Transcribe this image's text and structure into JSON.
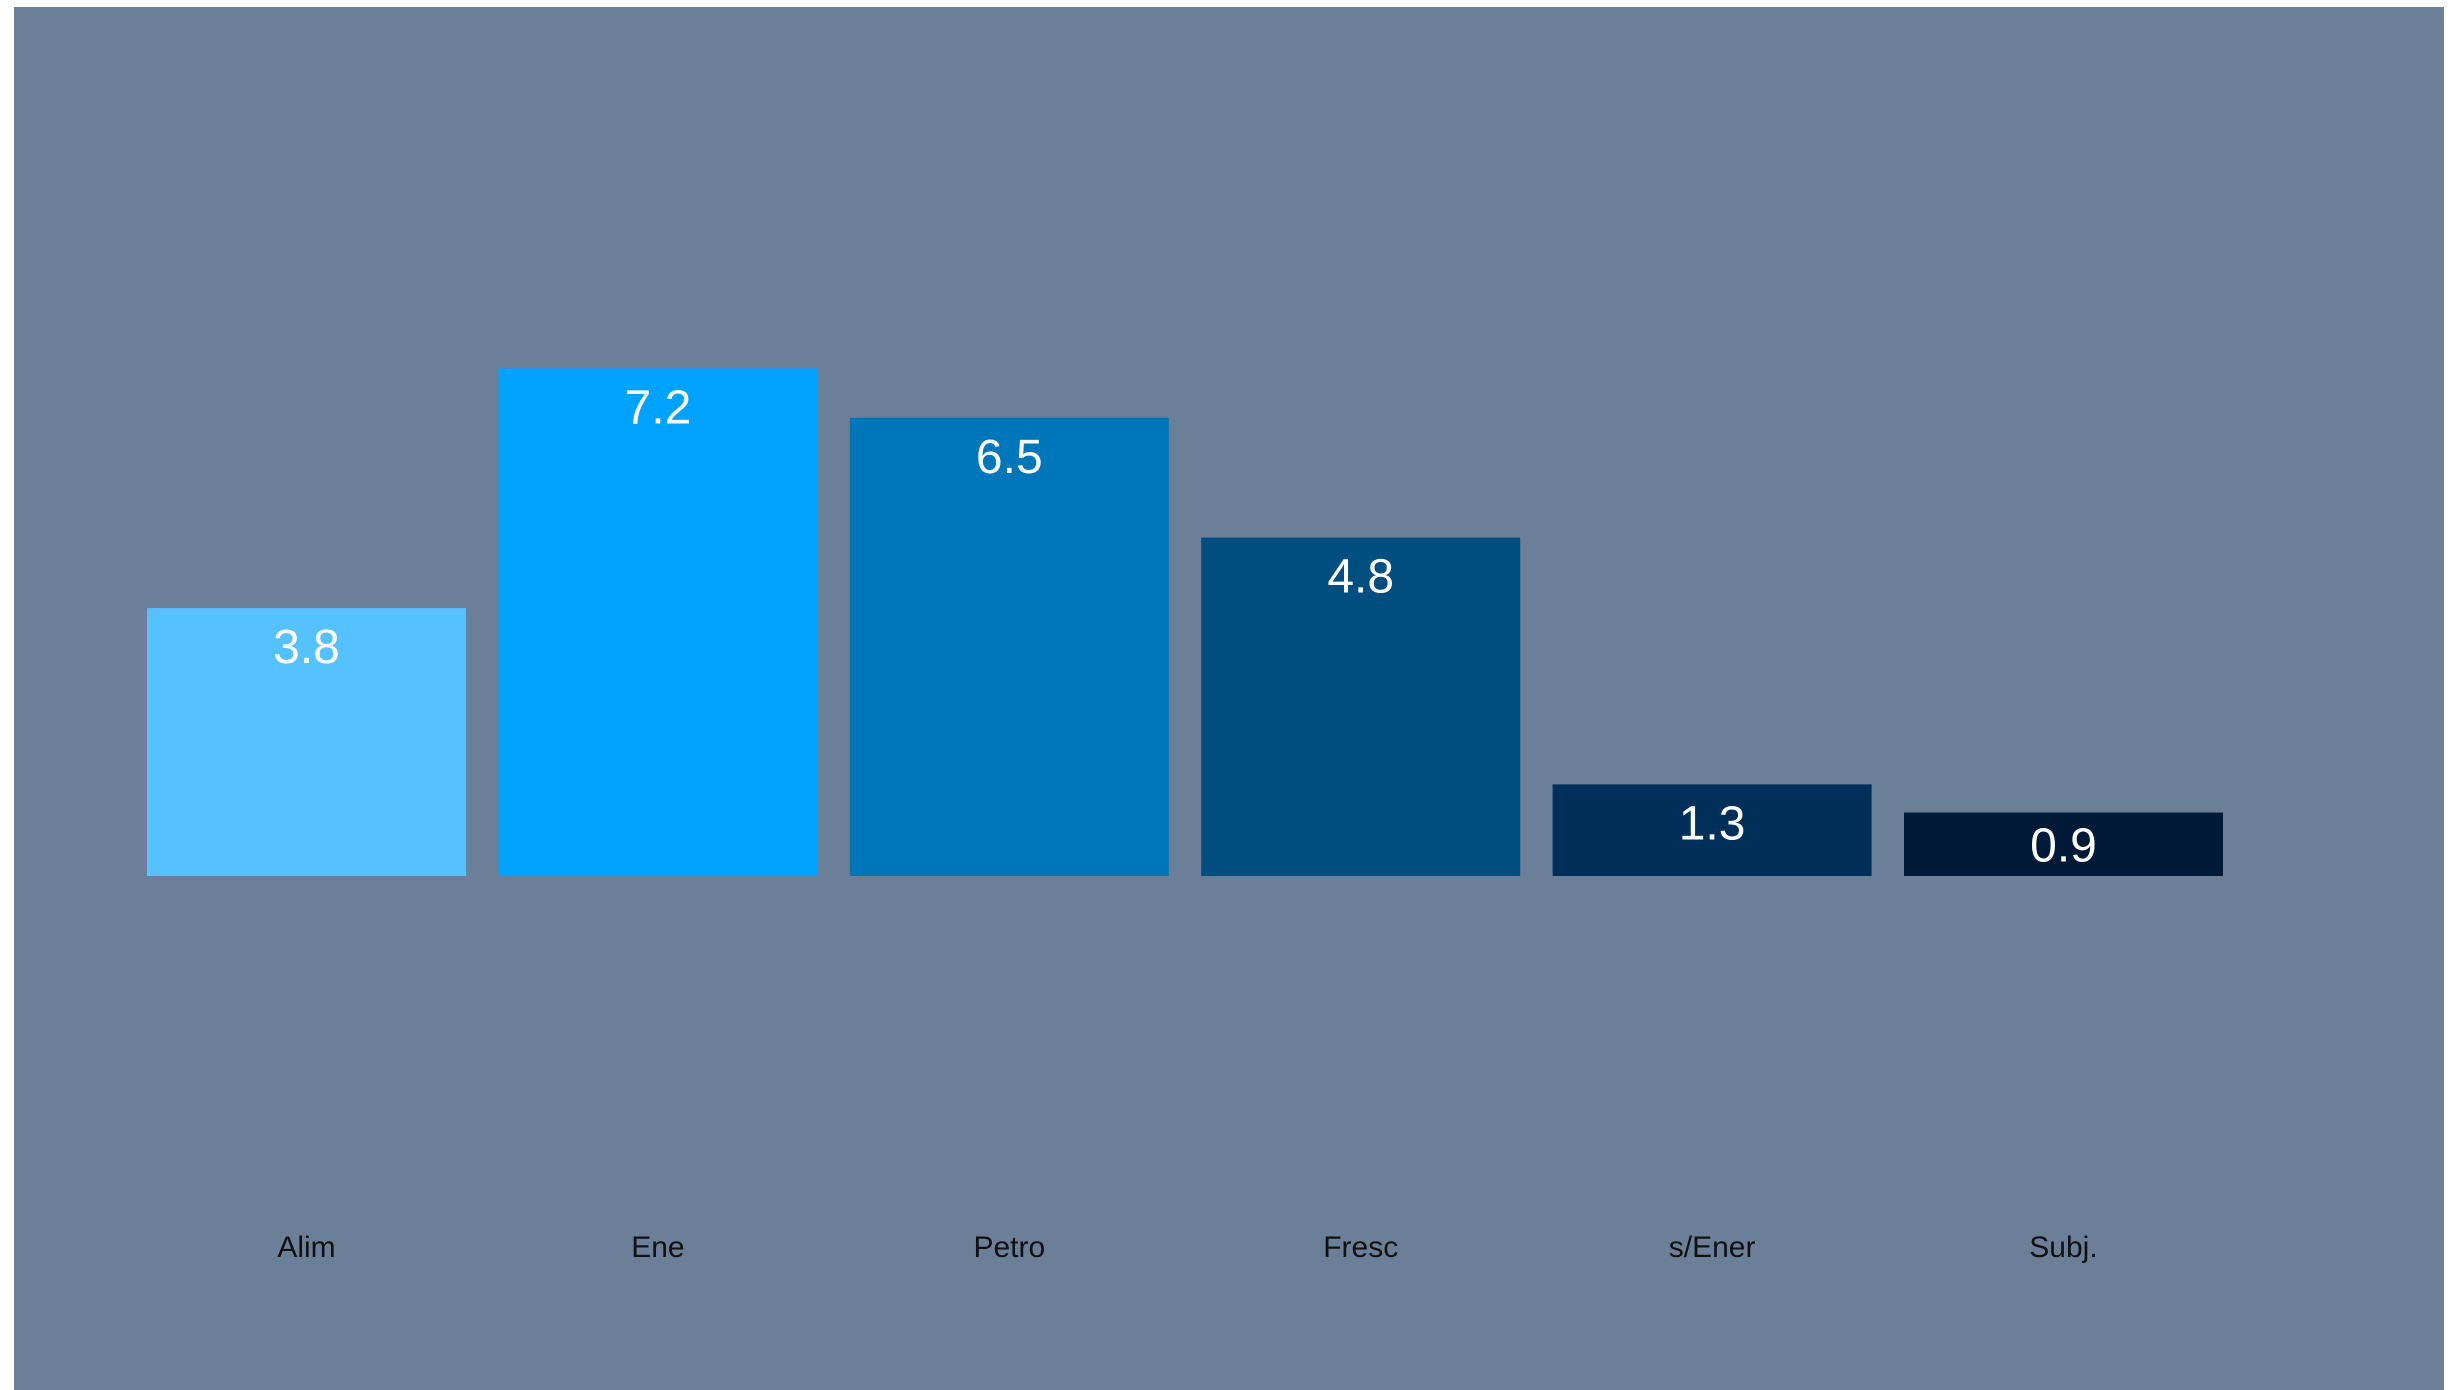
{
  "chart_data": {
    "type": "bar",
    "categories": [
      "Alim",
      "Ene",
      "Petro",
      "Fresc",
      "s/Ener",
      "Subj."
    ],
    "values": [
      3.8,
      7.2,
      6.5,
      4.8,
      1.3,
      0.9
    ],
    "data_labels": [
      "3.8",
      "7.2",
      "6.5",
      "4.8",
      "1.3",
      "0.9"
    ],
    "bar_colors": [
      "#56C1FF",
      "#00A2FF",
      "#0076BA",
      "#004D80",
      "#00305A",
      "#001A38"
    ],
    "background_color": "#6B8098",
    "title": "",
    "xlabel": "",
    "ylabel": "",
    "ylim": [
      0,
      10
    ],
    "grid": false,
    "legend": "none"
  }
}
